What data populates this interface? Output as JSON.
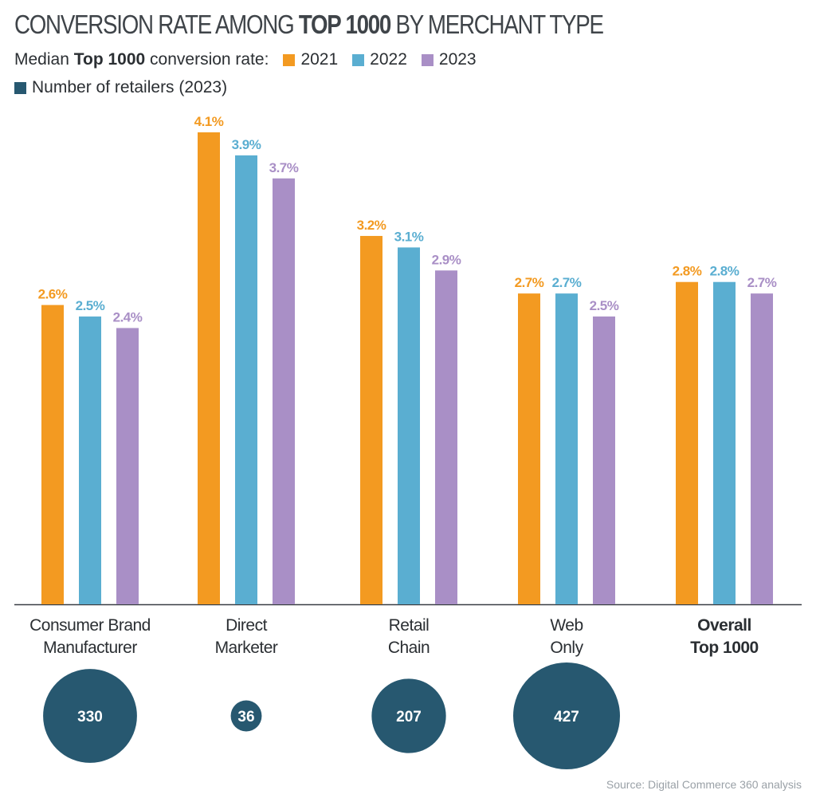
{
  "title": {
    "pre": "CONVERSION RATE AMONG ",
    "bold": "TOP 1000",
    "post": " BY MERCHANT TYPE"
  },
  "legend": {
    "label_pre": "Median ",
    "label_bold": "Top 1000",
    "label_post": " conversion rate:",
    "series_names": [
      "2021",
      "2022",
      "2023"
    ],
    "retailers_label": "Number of retailers (2023)"
  },
  "colors": {
    "2021": "#f39a21",
    "2022": "#5aaed1",
    "2023": "#a98fc6",
    "retailers": "#275870",
    "label_text": "#3a3f44",
    "baseline": "#3a3f44"
  },
  "chart_data": {
    "type": "bar",
    "title": "CONVERSION RATE AMONG TOP 1000 BY MERCHANT TYPE",
    "categories": [
      "Consumer Brand Manufacturer",
      "Direct Marketer",
      "Retail Chain",
      "Web Only",
      "Overall Top 1000"
    ],
    "category_lines": [
      [
        "Consumer Brand",
        "Manufacturer"
      ],
      [
        "Direct",
        "Marketer"
      ],
      [
        "Retail",
        "Chain"
      ],
      [
        "Web",
        "Only"
      ],
      [
        "Overall",
        "Top 1000"
      ]
    ],
    "bold_category": "Overall Top 1000",
    "unit": "%",
    "ylim": [
      0,
      4.1
    ],
    "grid": false,
    "legend_position": "top-left",
    "series": [
      {
        "name": "2021",
        "values": [
          2.6,
          4.1,
          3.2,
          2.7,
          2.8
        ],
        "labels": [
          "2.6%",
          "4.1%",
          "3.2%",
          "2.7%",
          "2.8%"
        ]
      },
      {
        "name": "2022",
        "values": [
          2.5,
          3.9,
          3.1,
          2.7,
          2.8
        ],
        "labels": [
          "2.5%",
          "3.9%",
          "3.1%",
          "2.7%",
          "2.8%"
        ]
      },
      {
        "name": "2023",
        "values": [
          2.4,
          3.7,
          2.9,
          2.5,
          2.7
        ],
        "labels": [
          "2.4%",
          "3.7%",
          "2.9%",
          "2.5%",
          "2.7%"
        ]
      }
    ],
    "retailers_2023": [
      330,
      36,
      207,
      427,
      null
    ]
  },
  "source": "Source: Digital Commerce 360 analysis"
}
